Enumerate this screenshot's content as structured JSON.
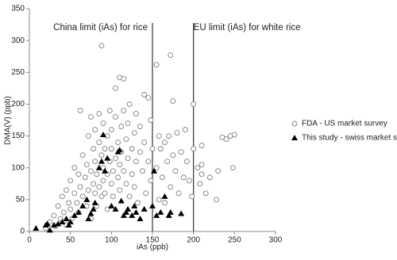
{
  "chart_data": {
    "type": "scatter",
    "xlabel": "iAs (ppb)",
    "ylabel": "DMA(V) (ppb)",
    "xlim": [
      0,
      300
    ],
    "xticks": [
      0,
      50,
      100,
      150,
      200,
      250,
      300
    ],
    "ylim": [
      0,
      350
    ],
    "yticks": [
      0,
      50,
      100,
      150,
      200,
      250,
      300,
      350
    ],
    "vlines": [
      {
        "value": 150,
        "label": "China limit (iAs) for rice"
      },
      {
        "value": 200,
        "label": "EU limit (iAs) for white rice"
      }
    ],
    "legend": "right",
    "series": [
      {
        "name": "FDA - US market survey",
        "color": "#808080",
        "marker": "circle",
        "x": [
          20,
          25,
          30,
          32,
          35,
          38,
          40,
          42,
          45,
          45,
          48,
          50,
          50,
          52,
          55,
          55,
          58,
          60,
          60,
          62,
          62,
          65,
          65,
          68,
          70,
          70,
          72,
          72,
          75,
          75,
          75,
          78,
          78,
          80,
          80,
          80,
          82,
          82,
          85,
          85,
          85,
          88,
          88,
          88,
          90,
          90,
          90,
          92,
          92,
          95,
          95,
          95,
          98,
          98,
          100,
          100,
          100,
          102,
          102,
          105,
          105,
          105,
          108,
          108,
          110,
          110,
          110,
          112,
          112,
          115,
          115,
          115,
          118,
          118,
          120,
          120,
          122,
          122,
          125,
          125,
          128,
          128,
          130,
          130,
          132,
          135,
          135,
          138,
          140,
          140,
          142,
          145,
          145,
          148,
          148,
          150,
          155,
          155,
          158,
          158,
          160,
          162,
          165,
          165,
          168,
          170,
          172,
          172,
          175,
          175,
          178,
          180,
          182,
          185,
          188,
          190,
          192,
          195,
          198,
          200,
          200,
          205,
          208,
          210,
          210,
          210,
          215,
          220,
          228,
          230,
          235,
          240,
          245,
          248,
          250
        ],
        "values": [
          5,
          15,
          25,
          8,
          40,
          20,
          55,
          30,
          10,
          65,
          45,
          35,
          80,
          20,
          60,
          100,
          45,
          90,
          30,
          70,
          190,
          55,
          120,
          85,
          40,
          105,
          150,
          65,
          95,
          20,
          180,
          75,
          130,
          110,
          60,
          160,
          90,
          40,
          140,
          70,
          185,
          292,
          120,
          55,
          100,
          80,
          170,
          130,
          60,
          90,
          150,
          35,
          110,
          190,
          75,
          130,
          160,
          95,
          55,
          225,
          115,
          180,
          85,
          140,
          242,
          105,
          65,
          165,
          125,
          240,
          95,
          190,
          75,
          145,
          115,
          170,
          55,
          200,
          130,
          90,
          155,
          70,
          110,
          185,
          45,
          125,
          165,
          95,
          215,
          140,
          60,
          210,
          110,
          175,
          80,
          130,
          262,
          100,
          150,
          50,
          130,
          85,
          140,
          45,
          110,
          150,
          277,
          70,
          205,
          120,
          95,
          155,
          60,
          125,
          85,
          160,
          110,
          80,
          55,
          200,
          130,
          100,
          75,
          105,
          135,
          90,
          60,
          85,
          50,
          95,
          148,
          145,
          150,
          100,
          152
        ]
      },
      {
        "name": "This study - swiss market survey",
        "color": "#000000",
        "marker": "triangle",
        "x": [
          8,
          20,
          22,
          25,
          30,
          35,
          40,
          45,
          48,
          50,
          55,
          60,
          65,
          70,
          72,
          75,
          78,
          80,
          85,
          88,
          90,
          92,
          95,
          100,
          105,
          108,
          110,
          112,
          115,
          118,
          120,
          125,
          128,
          130,
          135,
          140,
          150,
          152,
          155,
          160,
          165,
          170,
          172,
          185
        ],
        "values": [
          5,
          10,
          12,
          2,
          10,
          12,
          15,
          20,
          10,
          15,
          25,
          30,
          40,
          50,
          20,
          28,
          35,
          45,
          100,
          110,
          152,
          95,
          115,
          40,
          35,
          125,
          128,
          48,
          25,
          30,
          35,
          25,
          40,
          30,
          20,
          35,
          40,
          95,
          25,
          30,
          55,
          25,
          30,
          28
        ]
      }
    ]
  }
}
